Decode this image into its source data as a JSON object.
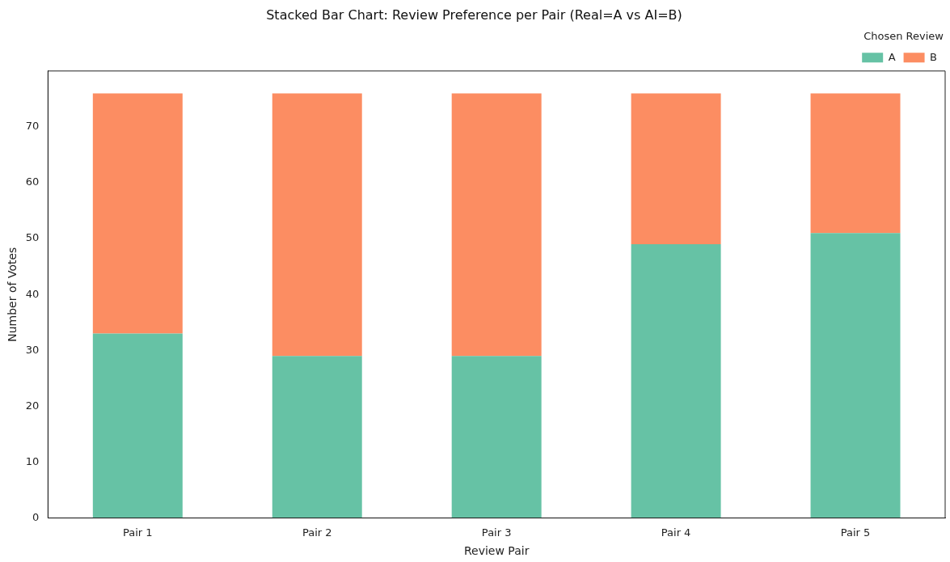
{
  "chart_data": {
    "type": "bar",
    "title": "Stacked Bar Chart: Review Preference per Pair (Real=A vs AI=B)",
    "xlabel": "Review Pair",
    "ylabel": "Number of Votes",
    "legend_title": "Chosen Review",
    "categories": [
      "Pair 1",
      "Pair 2",
      "Pair 3",
      "Pair 4",
      "Pair 5"
    ],
    "series": [
      {
        "name": "A",
        "color": "#66c2a5",
        "values": [
          33,
          29,
          29,
          49,
          51
        ]
      },
      {
        "name": "B",
        "color": "#fc8d62",
        "values": [
          43,
          47,
          47,
          27,
          25
        ]
      }
    ],
    "stacked": true,
    "ylim": [
      0,
      80
    ],
    "yticks": [
      0,
      10,
      20,
      30,
      40,
      50,
      60,
      70
    ],
    "grid": false,
    "legend": "top right"
  }
}
